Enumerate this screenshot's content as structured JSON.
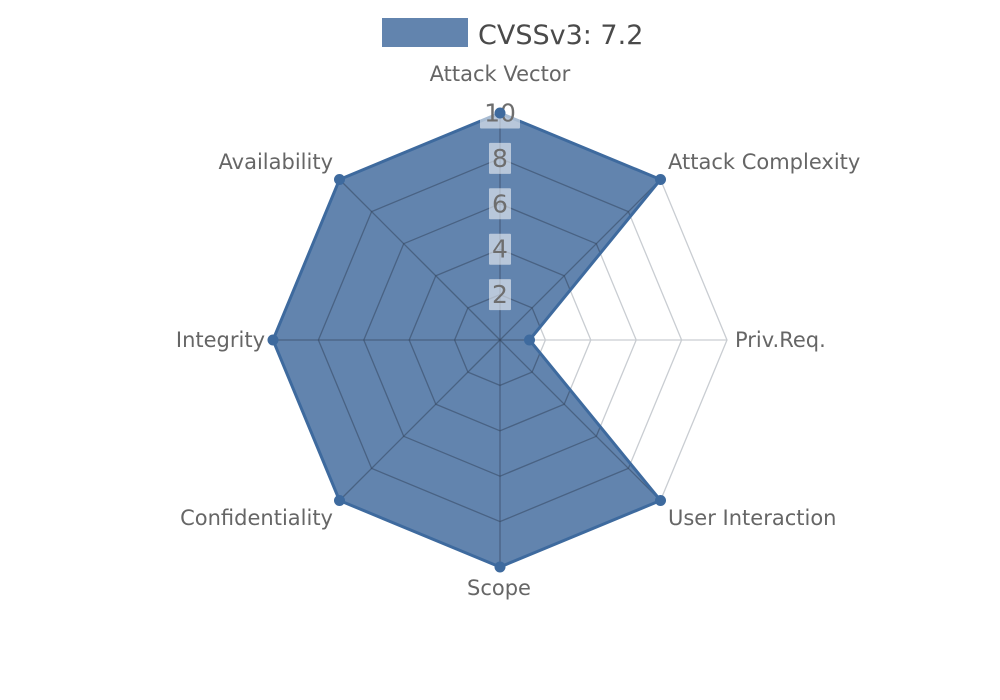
{
  "chart_data": {
    "type": "radar",
    "title": "",
    "legend": {
      "label": "CVSSv3: 7.2",
      "position": "top-center"
    },
    "categories": [
      "Attack Vector",
      "Attack Complexity",
      "Priv.Req.",
      "User Interaction",
      "Scope",
      "Confidentiality",
      "Integrity",
      "Availability"
    ],
    "series": [
      {
        "name": "CVSSv3: 7.2",
        "values": [
          10,
          10,
          1.3,
          10,
          10,
          10,
          10,
          10
        ]
      }
    ],
    "radial_ticks": [
      2,
      4,
      6,
      8,
      10
    ],
    "rlim": [
      0,
      10
    ],
    "grid": true,
    "colors": {
      "series_stroke": "#3e6a9e",
      "series_fill": "rgba(70,110,160,0.85)",
      "grid_outer": "#c9cdd2",
      "grid_inner": "rgba(50,62,80,0.42)",
      "tick_box_fill": "rgba(255,255,255,0.55)",
      "tick_text": "#6e6e6e",
      "axis_label_text": "#666666",
      "legend_text": "#4a4a4a"
    }
  }
}
